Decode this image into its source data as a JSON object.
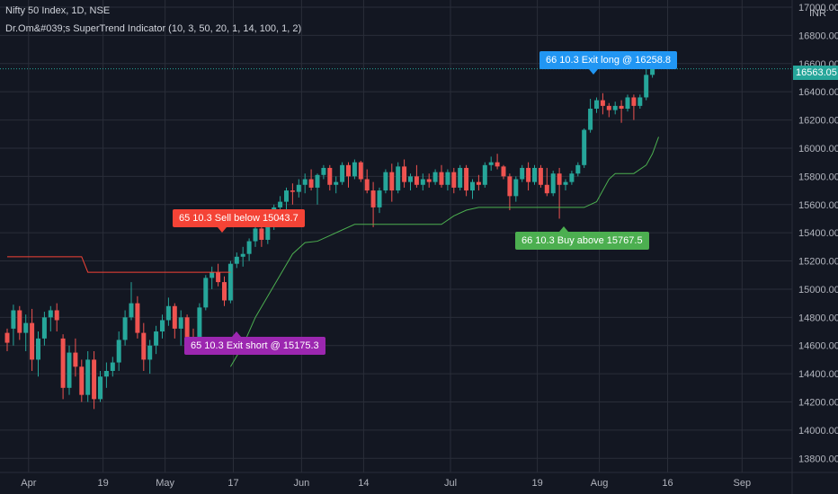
{
  "header": {
    "title": "Nifty 50 Index, 1D, NSE",
    "indicator": "Dr.Om&#039;s SuperTrend Indicator (10, 3, 50, 20, 1, 14, 100, 1, 2)"
  },
  "currency": "INR",
  "last_price_label": "16563.05",
  "colors": {
    "up": "#26a69a",
    "down": "#ef5350",
    "trend_up": "#4caf50",
    "trend_down": "#f44336",
    "bg": "#131722",
    "grid": "#2a2e39"
  },
  "signals": {
    "sell": {
      "text": "65 10.3 Sell below 15043.7",
      "color": "#f44336"
    },
    "exit_short": {
      "text": "65 10.3 Exit short @ 15175.3",
      "color": "#9c27b0"
    },
    "buy": {
      "text": "66 10.3 Buy above 15767.5",
      "color": "#4caf50"
    },
    "exit_long": {
      "text": "66 10.3 Exit long @ 16258.8",
      "color": "#2196f3"
    }
  },
  "chart_data": {
    "type": "candlestick",
    "title": "Nifty 50 Index, 1D, NSE",
    "y_axis": {
      "min": 13700,
      "max": 17000,
      "ticks": [
        "13800.00",
        "14000.00",
        "14200.00",
        "14400.00",
        "14600.00",
        "14800.00",
        "15000.00",
        "15200.00",
        "15400.00",
        "15600.00",
        "15800.00",
        "16000.00",
        "16200.00",
        "16400.00",
        "16600.00",
        "16800.00",
        "17000.00"
      ],
      "position": "right"
    },
    "x_axis": {
      "ticks": [
        {
          "label": "Apr",
          "index": 2
        },
        {
          "label": "19",
          "index": 14
        },
        {
          "label": "May",
          "index": 24
        },
        {
          "label": "17",
          "index": 35
        },
        {
          "label": "Jun",
          "index": 46
        },
        {
          "label": "14",
          "index": 56
        },
        {
          "label": "Jul",
          "index": 70
        },
        {
          "label": "19",
          "index": 84
        },
        {
          "label": "Aug",
          "index": 94
        },
        {
          "label": "16",
          "index": 105
        },
        {
          "label": "Sep",
          "index": 117
        }
      ]
    },
    "grid": true,
    "candles": [
      [
        14690,
        14720,
        14560,
        14620
      ],
      [
        14720,
        14890,
        14600,
        14850
      ],
      [
        14850,
        14880,
        14640,
        14690
      ],
      [
        14690,
        14820,
        14560,
        14760
      ],
      [
        14760,
        14860,
        14420,
        14500
      ],
      [
        14500,
        14700,
        14380,
        14650
      ],
      [
        14650,
        14840,
        14600,
        14800
      ],
      [
        14800,
        14880,
        14700,
        14850
      ],
      [
        14850,
        14900,
        14700,
        14780
      ],
      [
        14650,
        14680,
        14220,
        14300
      ],
      [
        14300,
        14600,
        14250,
        14550
      ],
      [
        14550,
        14650,
        14380,
        14450
      ],
      [
        14450,
        14500,
        14200,
        14250
      ],
      [
        14250,
        14560,
        14200,
        14500
      ],
      [
        14500,
        14560,
        14150,
        14220
      ],
      [
        14220,
        14420,
        14200,
        14380
      ],
      [
        14380,
        14480,
        14300,
        14420
      ],
      [
        14420,
        14520,
        14380,
        14480
      ],
      [
        14480,
        14700,
        14420,
        14640
      ],
      [
        14640,
        14850,
        14600,
        14800
      ],
      [
        14800,
        15050,
        14780,
        14900
      ],
      [
        14900,
        14950,
        14650,
        14690
      ],
      [
        14690,
        14760,
        14420,
        14500
      ],
      [
        14500,
        14640,
        14400,
        14600
      ],
      [
        14600,
        14740,
        14540,
        14700
      ],
      [
        14700,
        14820,
        14650,
        14780
      ],
      [
        14780,
        14940,
        14740,
        14880
      ],
      [
        14880,
        14900,
        14650,
        14720
      ],
      [
        14720,
        14850,
        14600,
        14800
      ],
      [
        14800,
        14820,
        14600,
        14650
      ],
      [
        14650,
        14720,
        14550,
        14600
      ],
      [
        14600,
        14900,
        14580,
        14870
      ],
      [
        14870,
        15100,
        14850,
        15080
      ],
      [
        15080,
        15160,
        15000,
        15120
      ],
      [
        15120,
        15180,
        15020,
        15050
      ],
      [
        15050,
        15090,
        14880,
        14920
      ],
      [
        14920,
        15200,
        14900,
        15180
      ],
      [
        15180,
        15260,
        15150,
        15230
      ],
      [
        15230,
        15300,
        15160,
        15250
      ],
      [
        15250,
        15360,
        15200,
        15340
      ],
      [
        15340,
        15450,
        15300,
        15430
      ],
      [
        15430,
        15470,
        15300,
        15350
      ],
      [
        15350,
        15480,
        15320,
        15450
      ],
      [
        15450,
        15600,
        15420,
        15580
      ],
      [
        15580,
        15660,
        15520,
        15620
      ],
      [
        15620,
        15720,
        15560,
        15700
      ],
      [
        15700,
        15750,
        15600,
        15690
      ],
      [
        15690,
        15780,
        15650,
        15740
      ],
      [
        15740,
        15820,
        15680,
        15780
      ],
      [
        15780,
        15850,
        15700,
        15720
      ],
      [
        15720,
        15820,
        15600,
        15810
      ],
      [
        15810,
        15880,
        15780,
        15860
      ],
      [
        15860,
        15880,
        15700,
        15740
      ],
      [
        15740,
        15800,
        15680,
        15760
      ],
      [
        15760,
        15900,
        15740,
        15880
      ],
      [
        15880,
        15900,
        15720,
        15800
      ],
      [
        15800,
        15920,
        15780,
        15900
      ],
      [
        15900,
        15910,
        15760,
        15780
      ],
      [
        15780,
        15850,
        15680,
        15700
      ],
      [
        15700,
        15760,
        15440,
        15580
      ],
      [
        15580,
        15720,
        15540,
        15700
      ],
      [
        15700,
        15850,
        15680,
        15830
      ],
      [
        15830,
        15890,
        15620,
        15700
      ],
      [
        15700,
        15900,
        15680,
        15870
      ],
      [
        15870,
        15920,
        15720,
        15760
      ],
      [
        15760,
        15820,
        15700,
        15800
      ],
      [
        15800,
        15880,
        15720,
        15740
      ],
      [
        15740,
        15820,
        15700,
        15780
      ],
      [
        15780,
        15820,
        15720,
        15760
      ],
      [
        15760,
        15850,
        15740,
        15830
      ],
      [
        15830,
        15880,
        15720,
        15740
      ],
      [
        15740,
        15850,
        15700,
        15830
      ],
      [
        15830,
        15860,
        15680,
        15720
      ],
      [
        15720,
        15880,
        15700,
        15860
      ],
      [
        15860,
        15880,
        15660,
        15700
      ],
      [
        15700,
        15780,
        15640,
        15760
      ],
      [
        15760,
        15810,
        15700,
        15740
      ],
      [
        15740,
        15900,
        15720,
        15880
      ],
      [
        15880,
        15940,
        15840,
        15900
      ],
      [
        15900,
        15960,
        15850,
        15870
      ],
      [
        15870,
        15880,
        15780,
        15800
      ],
      [
        15800,
        15820,
        15560,
        15660
      ],
      [
        15660,
        15800,
        15620,
        15780
      ],
      [
        15780,
        15880,
        15760,
        15860
      ],
      [
        15860,
        15900,
        15700,
        15760
      ],
      [
        15760,
        15880,
        15740,
        15860
      ],
      [
        15860,
        15880,
        15720,
        15740
      ],
      [
        15740,
        15860,
        15660,
        15680
      ],
      [
        15680,
        15840,
        15660,
        15820
      ],
      [
        15820,
        15860,
        15500,
        15740
      ],
      [
        15740,
        15780,
        15700,
        15760
      ],
      [
        15760,
        15840,
        15740,
        15820
      ],
      [
        15820,
        15900,
        15800,
        15880
      ],
      [
        15880,
        16140,
        15860,
        16130
      ],
      [
        16130,
        16350,
        16110,
        16280
      ],
      [
        16280,
        16360,
        16250,
        16340
      ],
      [
        16340,
        16390,
        16240,
        16300
      ],
      [
        16300,
        16320,
        16220,
        16270
      ],
      [
        16270,
        16330,
        16240,
        16300
      ],
      [
        16300,
        16340,
        16180,
        16280
      ],
      [
        16280,
        16380,
        16260,
        16360
      ],
      [
        16360,
        16380,
        16200,
        16300
      ],
      [
        16300,
        16380,
        16280,
        16360
      ],
      [
        16360,
        16560,
        16340,
        16520
      ],
      [
        16520,
        16600,
        16500,
        16563
      ]
    ],
    "supertrend_down": {
      "from_index": 0,
      "to_index": 36,
      "values": [
        [
          0,
          15230
        ],
        [
          12,
          15230
        ],
        [
          13,
          15120
        ],
        [
          36,
          15120
        ]
      ]
    },
    "supertrend_up": {
      "points": [
        [
          36,
          14450
        ],
        [
          38,
          14600
        ],
        [
          40,
          14800
        ],
        [
          42,
          14950
        ],
        [
          44,
          15100
        ],
        [
          46,
          15250
        ],
        [
          48,
          15330
        ],
        [
          50,
          15340
        ],
        [
          52,
          15380
        ],
        [
          54,
          15420
        ],
        [
          56,
          15460
        ],
        [
          70,
          15460
        ],
        [
          72,
          15520
        ],
        [
          74,
          15560
        ],
        [
          76,
          15580
        ],
        [
          93,
          15580
        ],
        [
          95,
          15620
        ],
        [
          97,
          15780
        ],
        [
          98,
          15820
        ],
        [
          101,
          15820
        ],
        [
          103,
          15880
        ],
        [
          104,
          15960
        ],
        [
          105,
          16080
        ]
      ]
    }
  }
}
